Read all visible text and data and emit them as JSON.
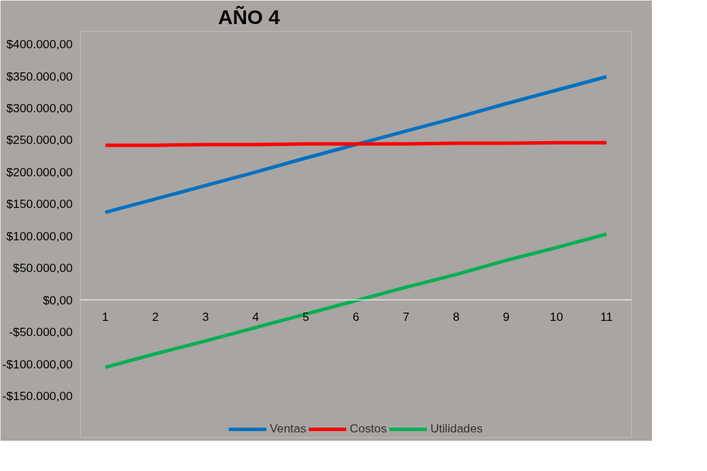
{
  "chart_data": {
    "type": "line",
    "title": "AÑO 4",
    "categories": [
      "1",
      "2",
      "3",
      "4",
      "5",
      "6",
      "7",
      "8",
      "9",
      "10",
      "11"
    ],
    "series": [
      {
        "name": "Ventas",
        "color": "#0070c0",
        "values": [
          137000,
          158000,
          179000,
          200000,
          222000,
          243000,
          264000,
          285000,
          307000,
          328000,
          349000
        ]
      },
      {
        "name": "Costos",
        "color": "#ff0000",
        "values": [
          242000,
          242000,
          243000,
          243000,
          244000,
          244000,
          244000,
          245000,
          245000,
          246000,
          246000
        ]
      },
      {
        "name": "Utilidades",
        "color": "#00b050",
        "values": [
          -105000,
          -84000,
          -64000,
          -43000,
          -22000,
          -1000,
          20000,
          40000,
          62000,
          82000,
          103000
        ]
      }
    ],
    "ylim": [
      -215000,
      420000
    ],
    "yticks": [
      {
        "value": -150000,
        "label": "-$150.000,00"
      },
      {
        "value": -100000,
        "label": "-$100.000,00"
      },
      {
        "value": -50000,
        "label": "-$50.000,00"
      },
      {
        "value": 0,
        "label": "$0,00"
      },
      {
        "value": 50000,
        "label": "$50.000,00"
      },
      {
        "value": 100000,
        "label": "$100.000,00"
      },
      {
        "value": 150000,
        "label": "$150.000,00"
      },
      {
        "value": 200000,
        "label": "$200.000,00"
      },
      {
        "value": 250000,
        "label": "$250.000,00"
      },
      {
        "value": 300000,
        "label": "$300.000,00"
      },
      {
        "value": 350000,
        "label": "$350.000,00"
      },
      {
        "value": 400000,
        "label": "$400.000,00"
      }
    ],
    "grid": false,
    "legend": "bottom",
    "marker": "none",
    "line_style": "solid"
  }
}
